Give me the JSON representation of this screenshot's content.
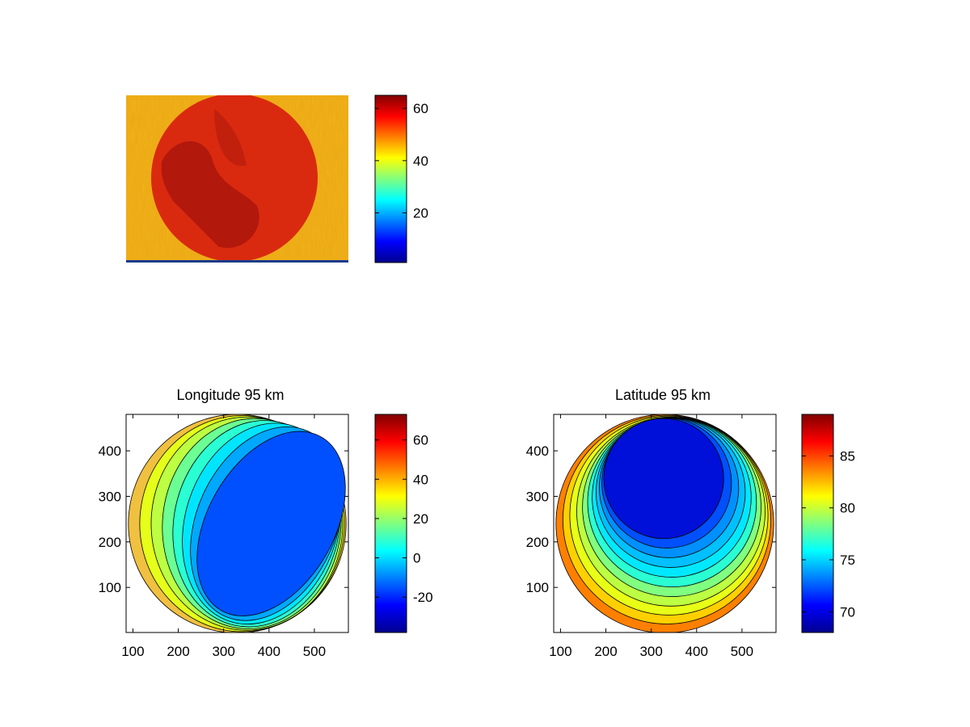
{
  "chart_data": [
    {
      "type": "heatmap",
      "title": "",
      "xlabel": "",
      "ylabel": "",
      "axes_visible": false,
      "colormap": "jet",
      "description_note": "",
      "colorbar": {
        "range": [
          1,
          65
        ],
        "ticks": [
          20,
          40,
          60
        ]
      },
      "background_level": 45,
      "disk_level": 60,
      "disk_dark_level": 64
    },
    {
      "type": "heatmap",
      "title": "Longitude 95 km",
      "xlabel": "",
      "ylabel": "",
      "colormap": "jet",
      "xlim": [
        85,
        575
      ],
      "ylim": [
        1,
        480
      ],
      "x_ticks": [
        100,
        200,
        300,
        400,
        500
      ],
      "y_ticks": [
        100,
        200,
        300,
        400
      ],
      "grid": false,
      "disk": {
        "center": [
          330,
          240
        ],
        "radius": 240
      },
      "colorbar": {
        "range": [
          -38,
          73
        ],
        "ticks": [
          -20,
          0,
          20,
          40,
          60
        ]
      },
      "filled_regions": [
        {
          "level": 50,
          "color": "#f0c040"
        },
        {
          "level": 35,
          "color": "#e5ff1a"
        },
        {
          "level": 25,
          "color": "#bdff42"
        },
        {
          "level": 15,
          "color": "#6bff94"
        },
        {
          "level": 5,
          "color": "#2affd4"
        },
        {
          "level": -5,
          "color": "#00e5ff"
        },
        {
          "level": -15,
          "color": "#00a8ff"
        },
        {
          "level": -25,
          "color": "#0050ff"
        }
      ]
    },
    {
      "type": "heatmap",
      "title": "Latitude 95 km",
      "xlabel": "",
      "ylabel": "",
      "colormap": "jet",
      "xlim": [
        85,
        575
      ],
      "ylim": [
        1,
        480
      ],
      "x_ticks": [
        100,
        200,
        300,
        400,
        500
      ],
      "y_ticks": [
        100,
        200,
        300,
        400
      ],
      "grid": false,
      "disk": {
        "center": [
          330,
          240
        ],
        "radius": 240
      },
      "colorbar": {
        "range": [
          68,
          89
        ],
        "ticks": [
          70,
          75,
          80,
          85
        ]
      },
      "filled_regions": [
        {
          "level": 82,
          "color": "#ff8000"
        },
        {
          "level": 80.5,
          "color": "#ffd000"
        },
        {
          "level": 79.5,
          "color": "#e8ff16"
        },
        {
          "level": 78.5,
          "color": "#bdff42"
        },
        {
          "level": 77.5,
          "color": "#80ff80"
        },
        {
          "level": 76.5,
          "color": "#2affd4"
        },
        {
          "level": 75.5,
          "color": "#00e8ff"
        },
        {
          "level": 74.5,
          "color": "#00c0ff"
        },
        {
          "level": 73.5,
          "color": "#0090ff"
        },
        {
          "level": 72.5,
          "color": "#0050ff"
        },
        {
          "level": 71,
          "color": "#0010d8"
        }
      ]
    }
  ]
}
